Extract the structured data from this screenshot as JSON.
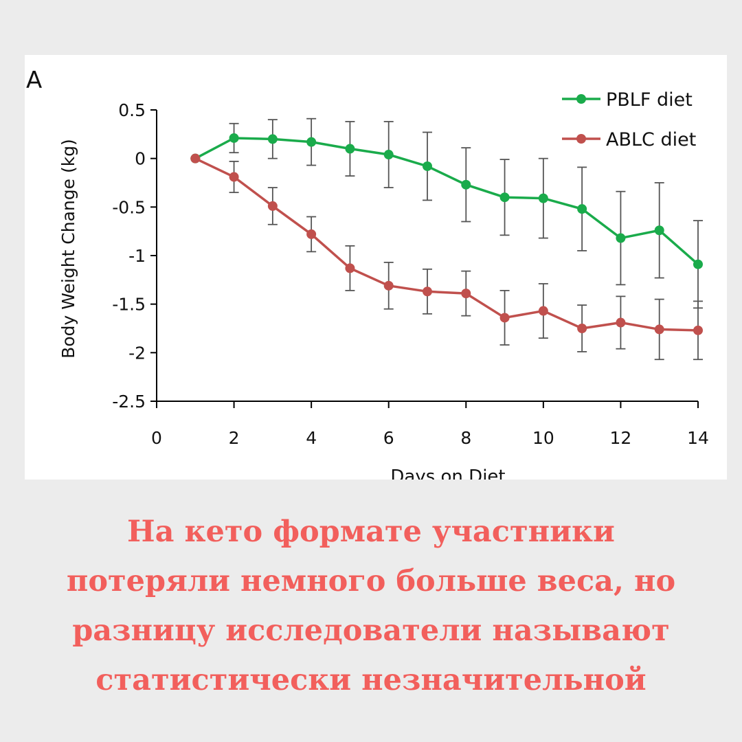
{
  "chart_data": {
    "type": "line",
    "panel_label": "A",
    "xlabel": "Days on Diet",
    "ylabel": "Body Weight Change (kg)",
    "xlim": [
      0,
      14
    ],
    "ylim": [
      -2.5,
      0.5
    ],
    "x_ticks": [
      0,
      2,
      4,
      6,
      8,
      10,
      12,
      14
    ],
    "y_ticks": [
      0.5,
      0,
      -0.5,
      -1,
      -1.5,
      -2,
      -2.5
    ],
    "y_tick_labels": [
      "0.5",
      "0",
      "-0.5",
      "-1",
      "-1.5",
      "-2",
      "-2.5"
    ],
    "grid": false,
    "legend_position": "top-right",
    "x": [
      1,
      2,
      3,
      4,
      5,
      6,
      7,
      8,
      9,
      10,
      11,
      12,
      13,
      14
    ],
    "series": [
      {
        "name": "PBLF diet",
        "color": "#1aab4b",
        "values": [
          0,
          0.21,
          0.2,
          0.17,
          0.1,
          0.04,
          -0.08,
          -0.27,
          -0.4,
          -0.41,
          -0.52,
          -0.82,
          -0.74,
          -1.09
        ],
        "error": [
          0,
          0.15,
          0.2,
          0.24,
          0.28,
          0.34,
          0.35,
          0.38,
          0.39,
          0.41,
          0.43,
          0.48,
          0.49,
          0.45
        ]
      },
      {
        "name": "ABLC diet",
        "color": "#c0504d",
        "values": [
          0,
          -0.19,
          -0.49,
          -0.78,
          -1.13,
          -1.31,
          -1.37,
          -1.39,
          -1.64,
          -1.57,
          -1.75,
          -1.69,
          -1.76,
          -1.77
        ],
        "error": [
          0,
          0.16,
          0.19,
          0.18,
          0.23,
          0.24,
          0.23,
          0.23,
          0.28,
          0.28,
          0.24,
          0.27,
          0.31,
          0.3
        ]
      }
    ]
  },
  "caption": {
    "lines": [
      "На кето формате участники",
      "потеряли немного больше веса, но",
      "разницу исследователи называют",
      "статистически незначительной"
    ]
  }
}
